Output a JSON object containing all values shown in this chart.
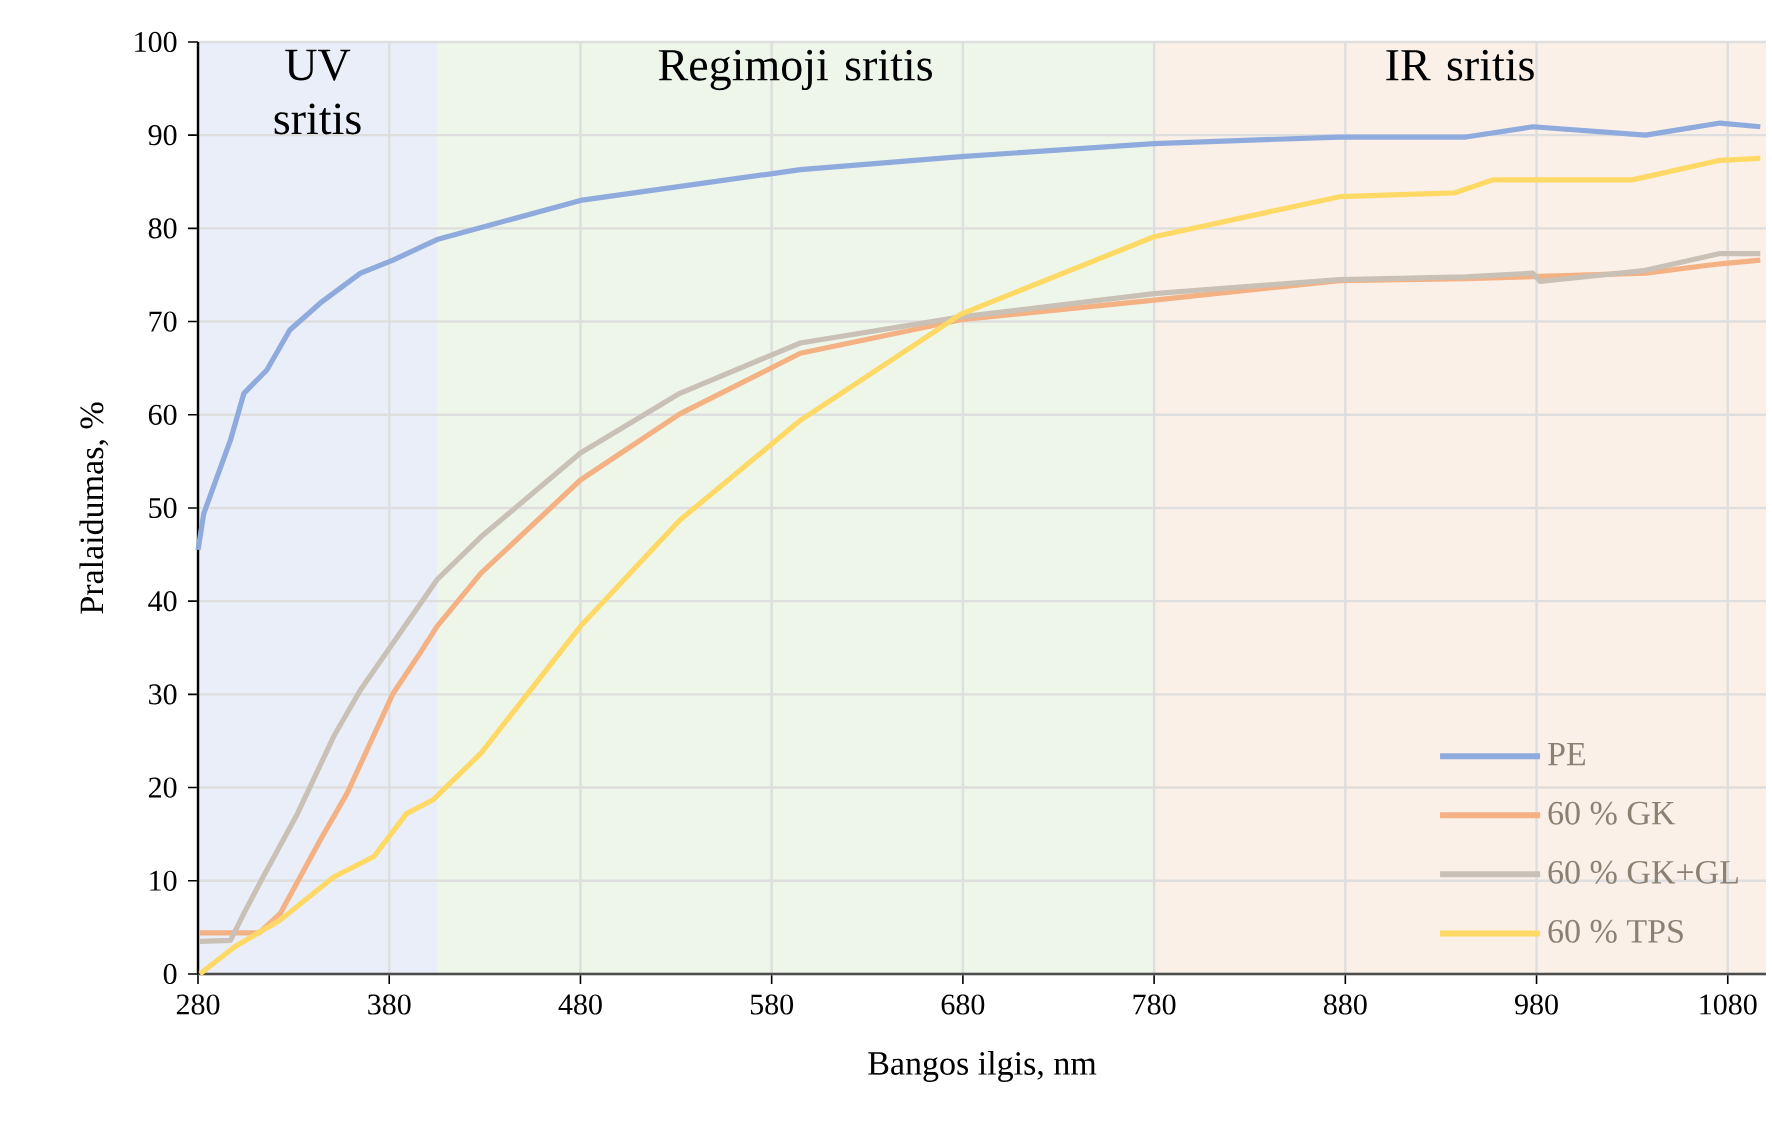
{
  "chart_data": {
    "type": "line",
    "xlabel": "Bangos ilgis, nm",
    "ylabel": "Pralaidumas, %",
    "xlim": [
      280,
      1100
    ],
    "ylim": [
      0,
      100
    ],
    "xticks": [
      280,
      380,
      480,
      580,
      680,
      780,
      880,
      980,
      1080
    ],
    "yticks": [
      0,
      10,
      20,
      30,
      40,
      50,
      60,
      70,
      80,
      90,
      100
    ],
    "grid": true,
    "legend": "bottom right",
    "marker": "none",
    "line_style": "solid",
    "bands": [
      {
        "axis": "x",
        "from": 280,
        "to": 405,
        "label": "UV sritis",
        "color": "#e9eef8"
      },
      {
        "axis": "x",
        "from": 405,
        "to": 780,
        "label": "Regimoji sritis",
        "color": "#eef6ea"
      },
      {
        "axis": "x",
        "from": 780,
        "to": 1100,
        "label": "IR sritis",
        "color": "#fbf0e8"
      }
    ],
    "series": [
      {
        "name": "PE",
        "color": "#8faadc",
        "x": [
          280,
          283,
          297,
          304,
          316,
          328,
          344,
          365,
          382,
          405,
          480,
          595,
          679,
          780,
          877,
          943,
          978,
          1037,
          1076,
          1097
        ],
        "values": [
          45.5,
          49.4,
          57.3,
          62.3,
          64.8,
          69.1,
          72,
          75.2,
          76.6,
          78.8,
          83,
          86.3,
          87.7,
          89.1,
          89.8,
          89.8,
          90.9,
          90,
          91.3,
          90.9
        ]
      },
      {
        "name": "60 % GK",
        "color": "#f4b183",
        "x": [
          281,
          312,
          323,
          344,
          358,
          382,
          396,
          405,
          428,
          480,
          532,
          595,
          679,
          780,
          877,
          943,
          1037,
          1076,
          1097
        ],
        "values": [
          4.4,
          4.4,
          6.5,
          14.4,
          19.4,
          30.1,
          34.4,
          37.3,
          43,
          53,
          60.1,
          66.6,
          70.2,
          72.3,
          74.4,
          74.6,
          75.2,
          76.2,
          76.6
        ]
      },
      {
        "name": "60 % GK+GL",
        "color": "#c9c0b6",
        "x": [
          281,
          297,
          304,
          314,
          332,
          351,
          365,
          382,
          405,
          428,
          480,
          532,
          595,
          679,
          780,
          877,
          943,
          978,
          982,
          1037,
          1076,
          1097
        ],
        "values": [
          3.5,
          3.6,
          6.5,
          10.4,
          17.2,
          25.5,
          30.5,
          35.5,
          42.3,
          46.9,
          55.9,
          62.3,
          67.7,
          70.5,
          73,
          74.5,
          74.8,
          75.2,
          74.3,
          75.5,
          77.3,
          77.3
        ]
      },
      {
        "name": "60 % TPS",
        "color": "#ffd966",
        "x": [
          281,
          299,
          323,
          351,
          372,
          389,
          403,
          428,
          480,
          532,
          595,
          679,
          780,
          877,
          937,
          957,
          1030,
          1076,
          1097
        ],
        "values": [
          0,
          2.9,
          5.8,
          10.4,
          12.6,
          17.2,
          18.7,
          23.7,
          37.3,
          48.7,
          59.4,
          70.8,
          79.1,
          83.4,
          83.8,
          85.2,
          85.2,
          87.3,
          87.5
        ]
      }
    ]
  }
}
